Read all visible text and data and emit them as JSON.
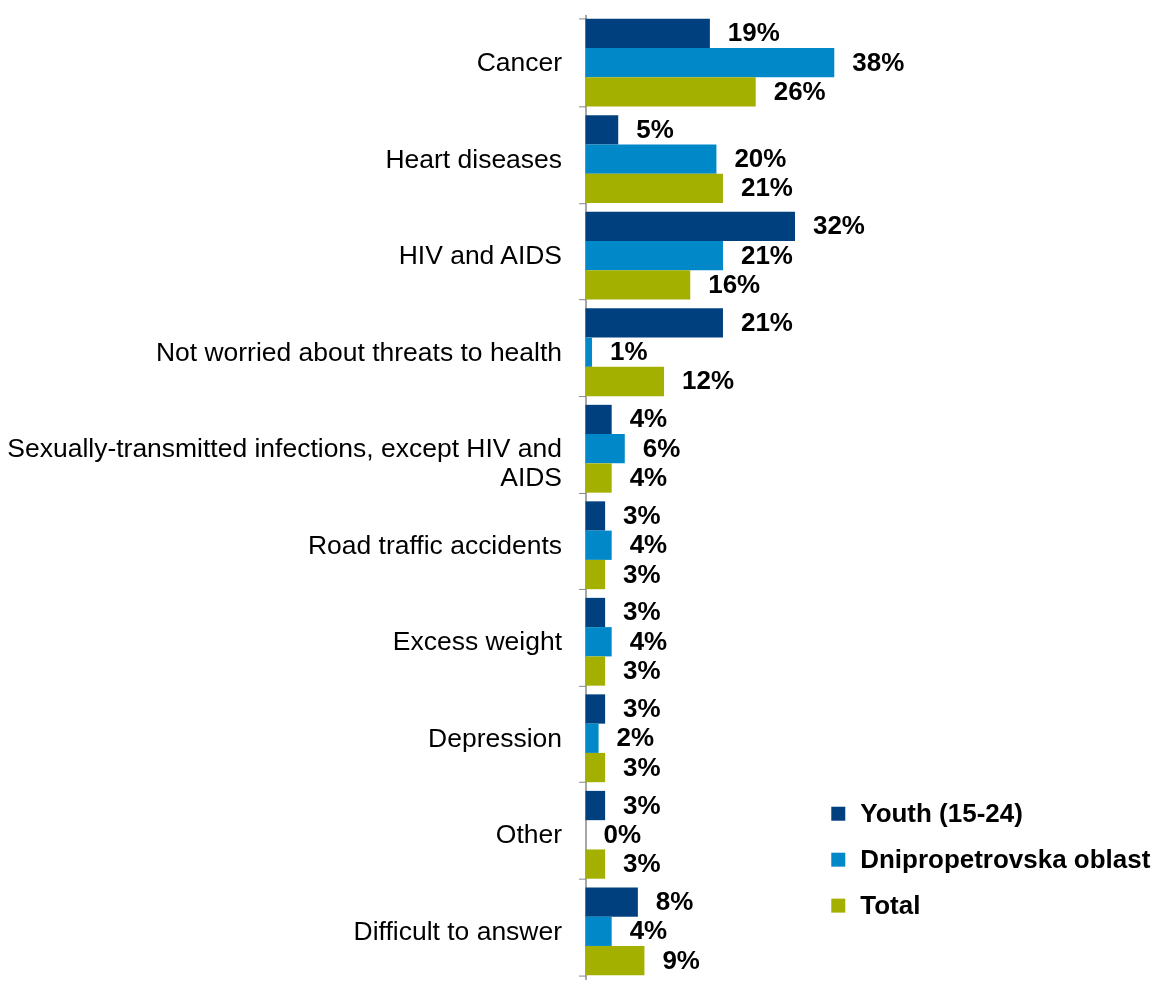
{
  "chart_data": {
    "type": "bar",
    "orientation": "horizontal",
    "legend": "bottom right",
    "categories": [
      "Cancer",
      "Heart diseases",
      "HIV and AIDS",
      "Not worried about threats to health",
      "Sexually-transmitted infections, except HIV and AIDS",
      "Road traffic accidents",
      "Excess weight",
      "Depression",
      "Other",
      "Difficult to answer"
    ],
    "series": [
      {
        "name": "Youth (15-24)",
        "color": "#00407f",
        "values": [
          19,
          5,
          32,
          21,
          4,
          3,
          3,
          3,
          3,
          8
        ],
        "value_labels": [
          "19%",
          "5%",
          "32%",
          "21%",
          "4%",
          "3%",
          "3%",
          "3%",
          "3%",
          "8%"
        ]
      },
      {
        "name": "Dnipropetrovska oblast",
        "color": "#0088c8",
        "values": [
          38,
          20,
          21,
          1,
          6,
          4,
          4,
          2,
          0,
          4
        ],
        "value_labels": [
          "38%",
          "20%",
          "21%",
          "1%",
          "6%",
          "4%",
          "4%",
          "2%",
          "0%",
          "4%"
        ]
      },
      {
        "name": "Total",
        "color": "#a3b000",
        "values": [
          26,
          21,
          16,
          12,
          4,
          3,
          3,
          3,
          3,
          9
        ],
        "value_labels": [
          "26%",
          "21%",
          "16%",
          "12%",
          "4%",
          "3%",
          "3%",
          "3%",
          "3%",
          "9%"
        ]
      }
    ]
  }
}
